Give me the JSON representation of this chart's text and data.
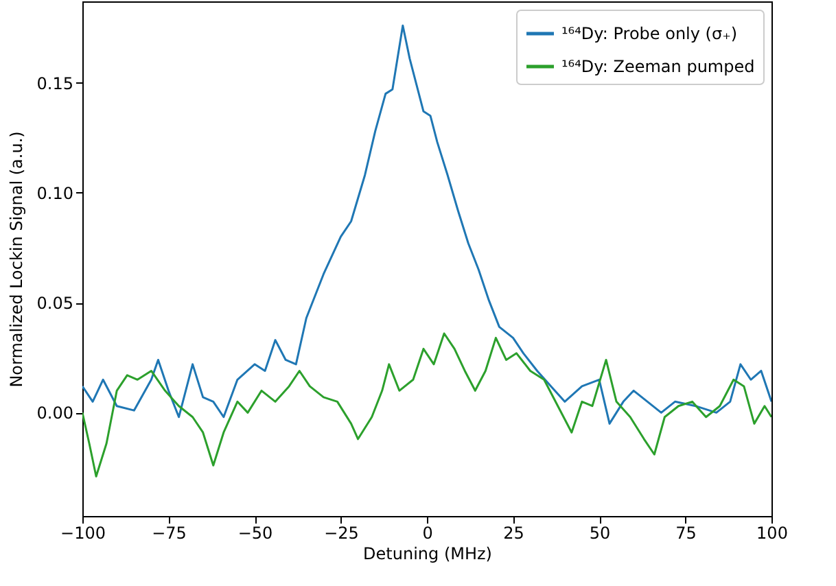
{
  "chart_data": {
    "type": "line",
    "xlabel": "Detuning (MHz)",
    "ylabel": "Normalized Lockin Signal (a.u.)",
    "xlim": [
      -100,
      100
    ],
    "ylim": [
      -0.047,
      0.187
    ],
    "xticks": [
      {
        "value": -100,
        "label": "−100"
      },
      {
        "value": -75,
        "label": "−75"
      },
      {
        "value": -50,
        "label": "−50"
      },
      {
        "value": -25,
        "label": "−25"
      },
      0,
      25,
      50,
      75,
      100
    ],
    "yticks": [
      {
        "value": 0,
        "label": "0.00"
      },
      0.05,
      {
        "value": 0.1,
        "label": "0.10"
      },
      0.15
    ],
    "grid": false,
    "legend": "top right",
    "line_style": "solid",
    "series": [
      {
        "name": "¹⁶⁴Dy: Probe only (σ₊)",
        "color": "#1f77b4",
        "x": [
          -100,
          -97,
          -94,
          -90,
          -85,
          -80,
          -78,
          -75,
          -72,
          -68,
          -65,
          -62,
          -59,
          -55,
          -50,
          -47,
          -44,
          -41,
          -38,
          -35,
          -30,
          -25,
          -22,
          -18,
          -15,
          -12,
          -10,
          -7,
          -5,
          -3,
          -1,
          1,
          3,
          6,
          9,
          12,
          15,
          18,
          21,
          25,
          28,
          32,
          36,
          40,
          45,
          50,
          53,
          57,
          60,
          64,
          68,
          72,
          78,
          84,
          88,
          91,
          94,
          97,
          100
        ],
        "values": [
          0.012,
          0.005,
          0.015,
          0.003,
          0.001,
          0.015,
          0.024,
          0.01,
          -0.002,
          0.022,
          0.007,
          0.005,
          -0.002,
          0.015,
          0.022,
          0.019,
          0.033,
          0.024,
          0.022,
          0.043,
          0.063,
          0.08,
          0.087,
          0.108,
          0.128,
          0.145,
          0.147,
          0.176,
          0.161,
          0.149,
          0.137,
          0.135,
          0.123,
          0.108,
          0.092,
          0.077,
          0.065,
          0.051,
          0.039,
          0.034,
          0.027,
          0.019,
          0.012,
          0.005,
          0.012,
          0.015,
          -0.005,
          0.005,
          0.01,
          0.005,
          0.0,
          0.005,
          0.003,
          0.0,
          0.005,
          0.022,
          0.015,
          0.019,
          0.005
        ]
      },
      {
        "name": "¹⁶⁴Dy: Zeeman pumped",
        "color": "#2ca02c",
        "x": [
          -100,
          -98,
          -96,
          -93,
          -90,
          -87,
          -84,
          -80,
          -76,
          -72,
          -68,
          -65,
          -62,
          -59,
          -55,
          -52,
          -48,
          -44,
          -40,
          -37,
          -34,
          -30,
          -26,
          -22,
          -20,
          -16,
          -13,
          -11,
          -8,
          -4,
          -1,
          2,
          5,
          8,
          11,
          14,
          17,
          20,
          23,
          26,
          30,
          34,
          38,
          42,
          45,
          48,
          52,
          55,
          59,
          63,
          66,
          69,
          73,
          77,
          81,
          85,
          89,
          92,
          95,
          98,
          100
        ],
        "values": [
          0.0,
          -0.014,
          -0.029,
          -0.014,
          0.01,
          0.017,
          0.015,
          0.019,
          0.01,
          0.003,
          -0.002,
          -0.009,
          -0.024,
          -0.009,
          0.005,
          0.0,
          0.01,
          0.005,
          0.012,
          0.019,
          0.012,
          0.007,
          0.005,
          -0.005,
          -0.012,
          -0.002,
          0.01,
          0.022,
          0.01,
          0.015,
          0.029,
          0.022,
          0.036,
          0.029,
          0.019,
          0.01,
          0.019,
          0.034,
          0.024,
          0.027,
          0.019,
          0.015,
          0.003,
          -0.009,
          0.005,
          0.003,
          0.024,
          0.005,
          -0.002,
          -0.012,
          -0.019,
          -0.002,
          0.003,
          0.005,
          -0.002,
          0.003,
          0.015,
          0.012,
          -0.005,
          0.003,
          -0.002
        ]
      }
    ]
  }
}
